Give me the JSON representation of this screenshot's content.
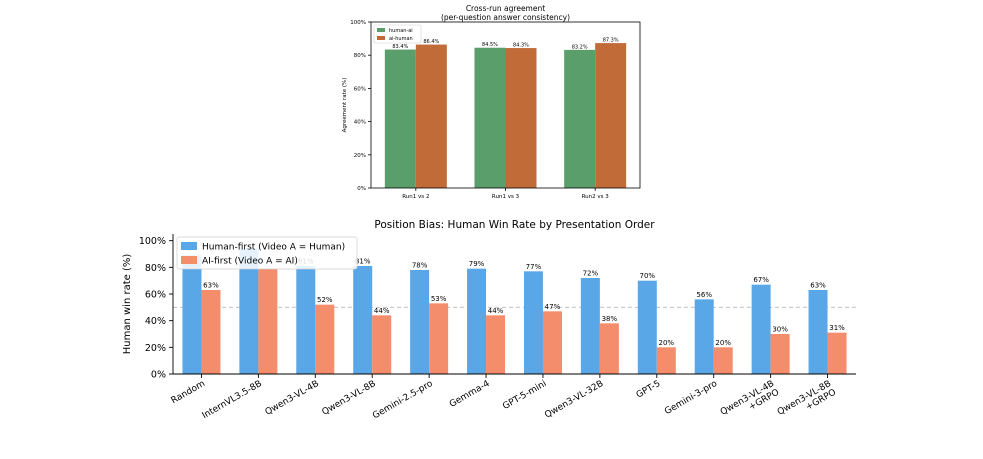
{
  "colors": {
    "human_ai": "#5a9e6b",
    "ai_human": "#c16c38",
    "human_first": "#5aa7e8",
    "ai_first": "#f48d6c",
    "axis": "#000000",
    "grid": "#e6e6e6",
    "reference_line": "#b8b8b8"
  },
  "caption": "",
  "chart_data": [
    {
      "type": "bar",
      "title": "Cross-run agreement",
      "subtitle": "(per-question answer consistency)",
      "xlabel": "",
      "ylabel": "Agreement rate (%)",
      "ylim": [
        0,
        100
      ],
      "yticks": [
        "0%",
        "20%",
        "40%",
        "60%",
        "80%",
        "100%"
      ],
      "grid": false,
      "legend_position": "top-left",
      "categories": [
        "Run1 vs 2",
        "Run1 vs 3",
        "Run2 vs 3"
      ],
      "series": [
        {
          "name": "human-ai",
          "values": [
            83.4,
            84.5,
            83.2
          ],
          "labels": [
            "83.4%",
            "84.5%",
            "83.2%"
          ]
        },
        {
          "name": "ai-human",
          "values": [
            86.4,
            84.3,
            87.3
          ],
          "labels": [
            "86.4%",
            "84.3%",
            "87.3%"
          ]
        }
      ]
    },
    {
      "type": "bar",
      "title": "Position Bias: Human Win Rate by Presentation Order",
      "xlabel": "",
      "ylabel": "Human win rate (%)",
      "ylim": [
        0,
        105
      ],
      "yticks": [
        "0%",
        "20%",
        "40%",
        "60%",
        "80%",
        "100%"
      ],
      "grid": false,
      "reference_line": 50,
      "legend_position": "top-left",
      "categories": [
        "Random",
        "InternVL3.5-8B",
        "Qwen3-VL-4B",
        "Qwen3-VL-8B",
        "Gemini-2.5-pro",
        "Gemma-4",
        "GPT-5-mini",
        "Qwen3-VL-32B",
        "GPT-5",
        "Gemini-3-pro",
        "Qwen3-VL-4B\n+GRPO",
        "Qwen3-VL-8B\n+GRPO"
      ],
      "series": [
        {
          "name": "Human-first (Video A = Human)",
          "values": [
            89,
            94,
            81,
            81,
            78,
            79,
            77,
            72,
            70,
            56,
            67,
            63
          ],
          "labels": [
            "",
            "",
            "81%",
            "81%",
            "78%",
            "79%",
            "77%",
            "72%",
            "70%",
            "56%",
            "67%",
            "63%"
          ]
        },
        {
          "name": "AI-first (Video A = AI)",
          "values": [
            63,
            79,
            52,
            44,
            53,
            44,
            47,
            38,
            20,
            20,
            30,
            31
          ],
          "labels": [
            "63%",
            "",
            "52%",
            "44%",
            "53%",
            "44%",
            "47%",
            "38%",
            "20%",
            "20%",
            "30%",
            "31%"
          ]
        }
      ]
    }
  ]
}
